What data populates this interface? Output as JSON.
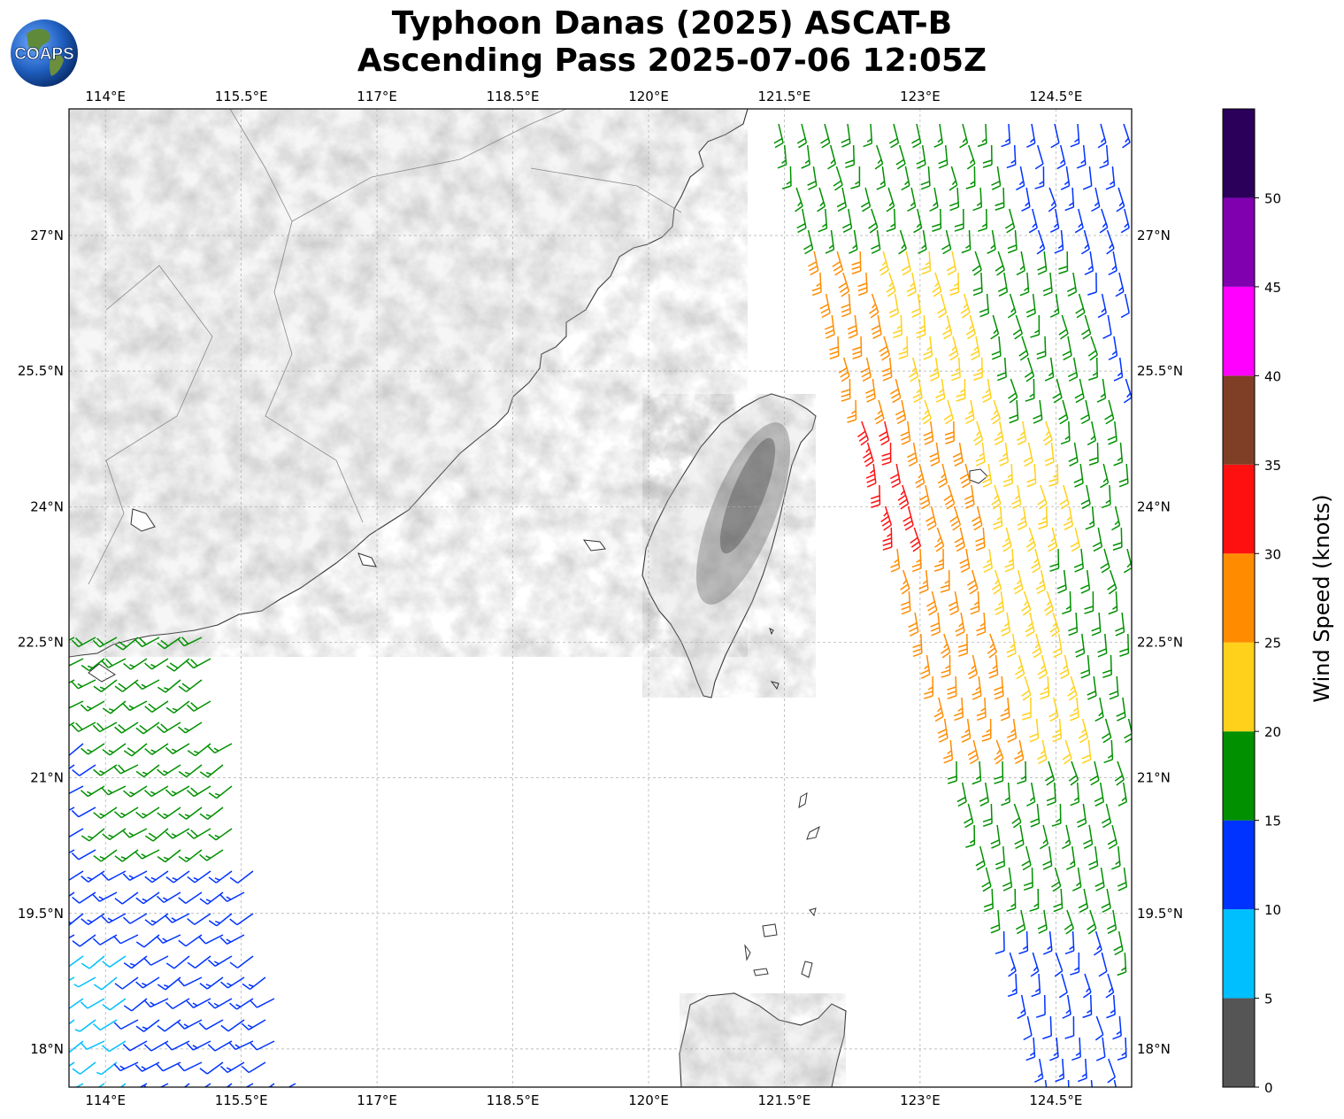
{
  "title": {
    "line1": "Typhoon Danas (2025) ASCAT-B",
    "line2": "Ascending Pass 2025-07-06 12:05Z"
  },
  "logo": {
    "text": "COAPS"
  },
  "map": {
    "lon_range": [
      113.8,
      125.5
    ],
    "lat_range": [
      17.6,
      28.4
    ],
    "lon_ticks": [
      "114°E",
      "115.5°E",
      "117°E",
      "118.5°E",
      "120°E",
      "121.5°E",
      "123°E",
      "124.5°E"
    ],
    "lon_tick_values": [
      114,
      115.5,
      117,
      118.5,
      120,
      121.5,
      123,
      124.5
    ],
    "lat_ticks": [
      "27°N",
      "25.5°N",
      "24°N",
      "22.5°N",
      "21°N",
      "19.5°N",
      "18°N"
    ],
    "lat_tick_values": [
      27,
      25.5,
      24,
      22.5,
      21,
      19.5,
      18
    ],
    "grid": true,
    "land_shading": "grayscale terrain"
  },
  "colorbar": {
    "label": "Wind Speed (knots)",
    "tick_labels": [
      "0",
      "5",
      "10",
      "15",
      "20",
      "25",
      "30",
      "35",
      "40",
      "45",
      "50"
    ],
    "bins": [
      {
        "min": 0,
        "max": 5,
        "color": "#555555"
      },
      {
        "min": 5,
        "max": 10,
        "color": "#00bfff"
      },
      {
        "min": 10,
        "max": 15,
        "color": "#0033ff"
      },
      {
        "min": 15,
        "max": 20,
        "color": "#009000"
      },
      {
        "min": 20,
        "max": 25,
        "color": "#ffd11a"
      },
      {
        "min": 25,
        "max": 30,
        "color": "#ff8c00"
      },
      {
        "min": 30,
        "max": 35,
        "color": "#ff1010"
      },
      {
        "min": 35,
        "max": 40,
        "color": "#7f3f26"
      },
      {
        "min": 40,
        "max": 45,
        "color": "#ff00ff"
      },
      {
        "min": 45,
        "max": 50,
        "color": "#8000b0"
      },
      {
        "min": 50,
        "max": 55,
        "color": "#2a005a"
      }
    ]
  },
  "colors": {
    "coast": "#333333",
    "border": "#888888",
    "grid": "#aaaaaa"
  }
}
